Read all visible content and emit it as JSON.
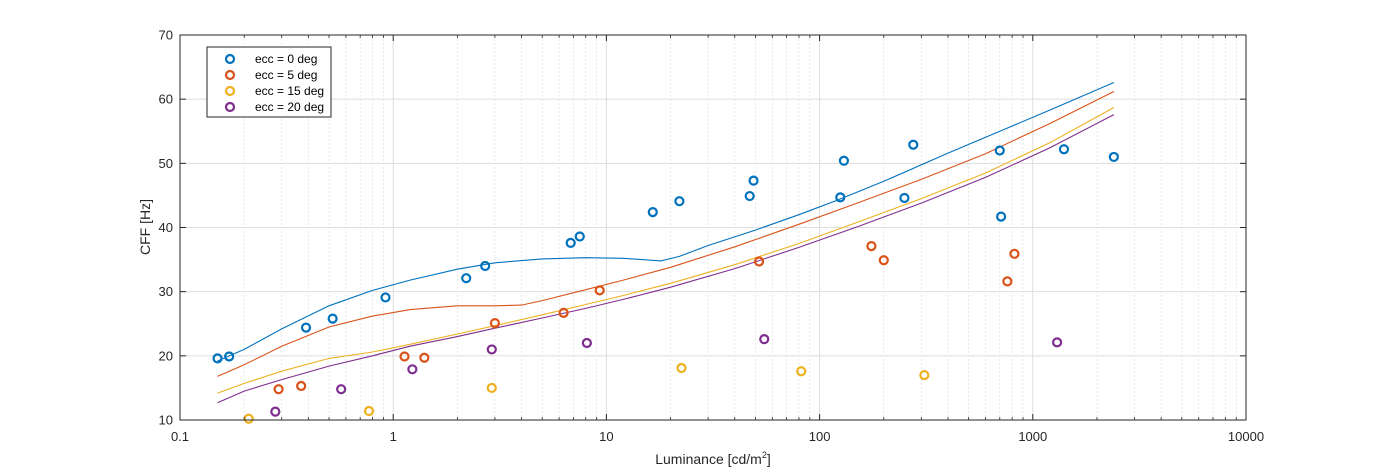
{
  "chart_data": {
    "type": "scatter",
    "xlabel": "Luminance [cd/m",
    "xlabel_sup": "2",
    "xlabel_end": "]",
    "ylabel": "CFF [Hz]",
    "xscale": "log",
    "xlim": [
      0.1,
      10000
    ],
    "ylim": [
      10,
      70
    ],
    "xticks": [
      0.1,
      1,
      10,
      100,
      1000,
      10000
    ],
    "xtick_labels": [
      "0.1",
      "1",
      "10",
      "100",
      "1000",
      "10000"
    ],
    "yticks": [
      10,
      20,
      30,
      40,
      50,
      60,
      70
    ],
    "ytick_labels": [
      "10",
      "20",
      "30",
      "40",
      "50",
      "60",
      "70"
    ],
    "grid": true,
    "minor_grid": true,
    "legend_position": "top-left",
    "series": [
      {
        "name": "ecc = 0 deg",
        "color": "#0072BD",
        "points": [
          [
            0.15,
            19.6
          ],
          [
            0.17,
            19.9
          ],
          [
            0.39,
            24.4
          ],
          [
            0.52,
            25.8
          ],
          [
            0.92,
            29.1
          ],
          [
            2.2,
            32.1
          ],
          [
            2.7,
            34.0
          ],
          [
            6.8,
            37.6
          ],
          [
            7.5,
            38.6
          ],
          [
            16.5,
            42.4
          ],
          [
            22,
            44.1
          ],
          [
            47,
            44.9
          ],
          [
            49,
            47.3
          ],
          [
            125,
            44.7
          ],
          [
            130,
            50.4
          ],
          [
            250,
            44.6
          ],
          [
            275,
            52.9
          ],
          [
            700,
            52.0
          ],
          [
            710,
            41.7
          ],
          [
            1400,
            52.2
          ],
          [
            2400,
            51.0
          ]
        ],
        "fit_x": [
          0.15,
          0.2,
          0.3,
          0.5,
          0.8,
          1.2,
          2,
          3,
          5,
          8,
          12,
          18,
          22,
          30,
          50,
          80,
          120,
          200,
          400,
          700,
          1200,
          2400
        ],
        "fit_y": [
          19.2,
          21.0,
          24.2,
          27.8,
          30.2,
          31.8,
          33.5,
          34.5,
          35.1,
          35.3,
          35.2,
          34.8,
          35.5,
          37.2,
          39.6,
          42.0,
          44.2,
          47.2,
          51.6,
          55.0,
          58.3,
          62.6
        ]
      },
      {
        "name": "ecc = 5 deg",
        "color": "#D95319",
        "points": [
          [
            0.29,
            14.8
          ],
          [
            0.37,
            15.3
          ],
          [
            1.13,
            19.9
          ],
          [
            1.4,
            19.7
          ],
          [
            3.0,
            25.1
          ],
          [
            6.3,
            26.7
          ],
          [
            9.3,
            30.2
          ],
          [
            52,
            34.7
          ],
          [
            175,
            37.1
          ],
          [
            200,
            34.9
          ],
          [
            760,
            31.6
          ],
          [
            820,
            35.9
          ]
        ],
        "fit_x": [
          0.15,
          0.2,
          0.3,
          0.5,
          0.8,
          1.2,
          2,
          3,
          4,
          5,
          8,
          12,
          20,
          40,
          80,
          150,
          300,
          600,
          1200,
          2400
        ],
        "fit_y": [
          16.8,
          18.6,
          21.5,
          24.5,
          26.2,
          27.2,
          27.8,
          27.8,
          27.9,
          28.6,
          30.3,
          31.8,
          33.8,
          37.0,
          40.5,
          43.8,
          47.5,
          51.5,
          56.2,
          61.2
        ]
      },
      {
        "name": "ecc = 15 deg",
        "color": "#EDB120",
        "points": [
          [
            0.21,
            10.2
          ],
          [
            0.77,
            11.4
          ],
          [
            2.9,
            15.0
          ],
          [
            22.5,
            18.1
          ],
          [
            82,
            17.6
          ],
          [
            310,
            17.0
          ]
        ],
        "fit_x": [
          0.15,
          0.2,
          0.3,
          0.5,
          0.8,
          1.2,
          2,
          3,
          5,
          8,
          12,
          20,
          40,
          80,
          150,
          300,
          600,
          1200,
          2400
        ],
        "fit_y": [
          14.2,
          15.7,
          17.6,
          19.6,
          20.6,
          21.8,
          23.4,
          24.7,
          26.4,
          28.0,
          29.4,
          31.3,
          34.2,
          37.5,
          40.8,
          44.5,
          48.5,
          53.2,
          58.7
        ]
      },
      {
        "name": "ecc = 20 deg",
        "color": "#7E2F8E",
        "points": [
          [
            0.28,
            11.3
          ],
          [
            0.57,
            14.8
          ],
          [
            1.23,
            17.9
          ],
          [
            2.9,
            21.0
          ],
          [
            8.1,
            22.0
          ],
          [
            55,
            22.6
          ],
          [
            1300,
            22.1
          ]
        ],
        "fit_x": [
          0.15,
          0.2,
          0.3,
          0.5,
          0.8,
          1.2,
          2,
          3,
          5,
          8,
          12,
          20,
          40,
          80,
          150,
          300,
          600,
          1200,
          2400
        ],
        "fit_y": [
          12.7,
          14.5,
          16.3,
          18.4,
          20.0,
          21.5,
          23.0,
          24.3,
          25.9,
          27.4,
          28.8,
          30.7,
          33.6,
          36.9,
          40.1,
          43.8,
          47.8,
          52.4,
          57.6
        ]
      }
    ]
  }
}
